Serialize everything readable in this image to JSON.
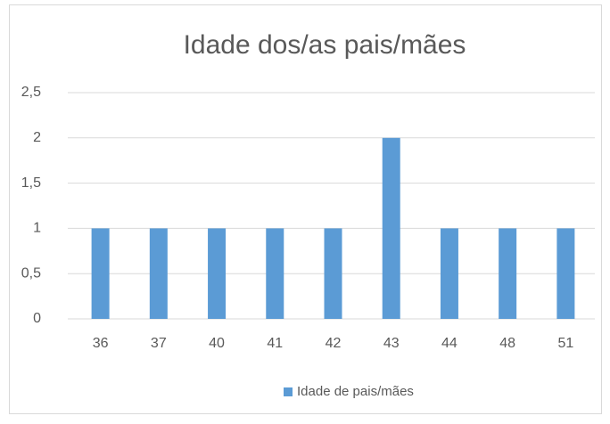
{
  "chart_data": {
    "type": "bar",
    "title": "Idade dos/as pais/mães",
    "categories": [
      "36",
      "37",
      "40",
      "41",
      "42",
      "43",
      "44",
      "48",
      "51"
    ],
    "series": [
      {
        "name": "Idade de pais/mães",
        "color": "#5b9bd5",
        "values": [
          1,
          1,
          1,
          1,
          1,
          2,
          1,
          1,
          1
        ]
      }
    ],
    "ylim": [
      0,
      2.5
    ],
    "yticks": [
      0,
      {
        "value": 0.5,
        "label": "0,5"
      },
      1,
      {
        "value": 1.5,
        "label": "1,5"
      },
      2,
      {
        "value": 2.5,
        "label": "2,5"
      }
    ],
    "grid": true,
    "legend": "bottom"
  }
}
